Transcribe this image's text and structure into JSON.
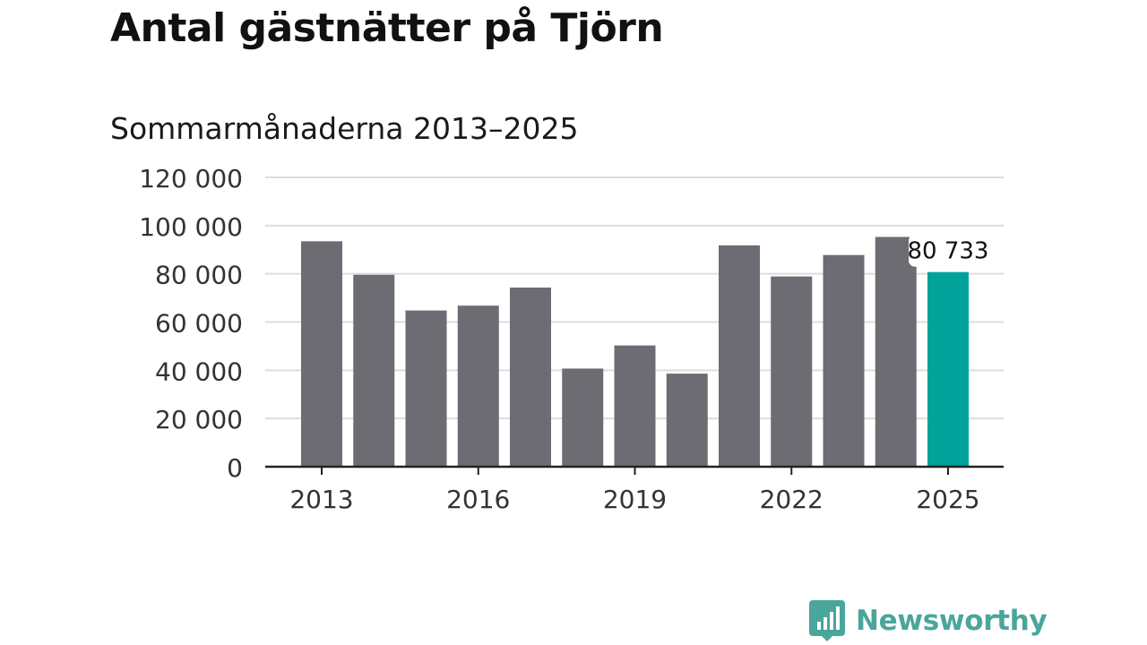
{
  "title": "Antal gästnätter på Tjörn",
  "subtitle": "Sommarmånaderna 2013–2025",
  "chart_data": {
    "type": "bar",
    "title": "Antal gästnätter på Tjörn",
    "subtitle": "Sommarmånaderna 2013–2025",
    "categories": [
      "2013",
      "2014",
      "2015",
      "2016",
      "2017",
      "2018",
      "2019",
      "2020",
      "2021",
      "2022",
      "2023",
      "2024",
      "2025"
    ],
    "values": [
      93500,
      79600,
      64800,
      66800,
      74300,
      40700,
      50300,
      38600,
      91800,
      78900,
      87800,
      95300,
      80733
    ],
    "x_tick_labels": [
      "2013",
      "2016",
      "2019",
      "2022",
      "2025"
    ],
    "y_ticks": [
      0,
      20000,
      40000,
      60000,
      80000,
      100000,
      120000
    ],
    "y_tick_labels": [
      "0",
      "20 000",
      "40 000",
      "60 000",
      "80 000",
      "100 000",
      "120 000"
    ],
    "ylim": [
      0,
      120000
    ],
    "xlabel": "",
    "ylabel": "",
    "grid": true,
    "colors": {
      "bar": "#6d6c73",
      "highlight": "#00a29a",
      "grid": "#dddddd",
      "axis": "#222222"
    },
    "highlight_index": 12,
    "annotation": {
      "category": "2025",
      "text": "80 733"
    }
  },
  "brand": {
    "name": "Newsworthy",
    "icon": "bar-chart-speech-bubble-icon",
    "color": "#4aa59b"
  }
}
